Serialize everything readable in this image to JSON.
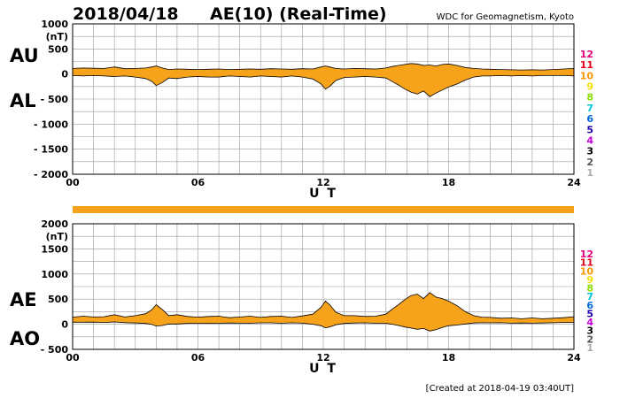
{
  "header": {
    "date": "2018/04/18",
    "title": "AE(10) (Real-Time)",
    "org": "WDC for Geomagnetism, Kyoto"
  },
  "footer": "[Created at 2018-04-19 03:40UT]",
  "colors": {
    "fill": "#f7a21b",
    "outline": "#000000",
    "grid": "#9a9a9a"
  },
  "stations": [
    {
      "label": "12",
      "color": "#e6007e"
    },
    {
      "label": "11",
      "color": "#e4001b"
    },
    {
      "label": "10",
      "color": "#f39800"
    },
    {
      "label": "9",
      "color": "#f5e100"
    },
    {
      "label": "8",
      "color": "#8fe000"
    },
    {
      "label": "7",
      "color": "#00c4d9"
    },
    {
      "label": "6",
      "color": "#0068d9"
    },
    {
      "label": "5",
      "color": "#1d00a8"
    },
    {
      "label": "4",
      "color": "#c400d9"
    },
    {
      "label": "3",
      "color": "#000000"
    },
    {
      "label": "2",
      "color": "#555555"
    },
    {
      "label": "1",
      "color": "#aaaaaa"
    }
  ],
  "chart_data": [
    {
      "type": "area",
      "panel": "AU/AL",
      "side_labels": [
        "AU",
        "AL"
      ],
      "xlabel": "U T",
      "ylabel": "(nT)",
      "xlim": [
        0,
        24
      ],
      "ylim": [
        -2000,
        1000
      ],
      "xticks": [
        0,
        6,
        12,
        18,
        24
      ],
      "xtick_labels": [
        "00",
        "06",
        "12",
        "18",
        "24"
      ],
      "yticks": [
        1000,
        500,
        0,
        -500,
        -1000,
        -1500,
        -2000
      ],
      "ytick_labels": [
        "1000",
        "500",
        "0",
        "- 500",
        "- 1000",
        "- 1500",
        "- 2000"
      ],
      "grid": true,
      "x": [
        0,
        0.5,
        1,
        1.5,
        2,
        2.5,
        3,
        3.5,
        3.8,
        4,
        4.3,
        4.6,
        5,
        5.5,
        6,
        6.5,
        7,
        7.5,
        8,
        8.5,
        9,
        9.5,
        10,
        10.5,
        11,
        11.5,
        11.9,
        12.1,
        12.3,
        12.6,
        13,
        13.5,
        14,
        14.5,
        15,
        15.3,
        15.6,
        15.9,
        16.2,
        16.5,
        16.8,
        17.1,
        17.4,
        17.7,
        18,
        18.4,
        18.8,
        19.2,
        19.6,
        20,
        20.5,
        21,
        21.5,
        22,
        22.5,
        23,
        23.5,
        24
      ],
      "series": [
        {
          "name": "AU",
          "values": [
            110,
            120,
            115,
            110,
            140,
            105,
            110,
            120,
            140,
            160,
            120,
            90,
            100,
            95,
            90,
            95,
            100,
            90,
            95,
            100,
            95,
            105,
            100,
            95,
            105,
            100,
            140,
            160,
            140,
            110,
            100,
            110,
            105,
            100,
            120,
            150,
            170,
            190,
            210,
            200,
            170,
            180,
            160,
            190,
            200,
            170,
            130,
            110,
            100,
            95,
            90,
            85,
            80,
            85,
            80,
            90,
            100,
            110
          ]
        },
        {
          "name": "AL",
          "values": [
            -30,
            -40,
            -30,
            -40,
            -50,
            -40,
            -60,
            -90,
            -150,
            -230,
            -170,
            -80,
            -90,
            -60,
            -50,
            -60,
            -60,
            -40,
            -50,
            -60,
            -40,
            -50,
            -60,
            -40,
            -60,
            -100,
            -200,
            -300,
            -250,
            -130,
            -70,
            -60,
            -50,
            -60,
            -80,
            -150,
            -220,
            -300,
            -360,
            -400,
            -340,
            -450,
            -380,
            -320,
            -260,
            -200,
            -120,
            -60,
            -40,
            -40,
            -30,
            -40,
            -30,
            -40,
            -30,
            -30,
            -30,
            -40
          ]
        }
      ]
    },
    {
      "type": "area",
      "panel": "AE/AO",
      "side_labels": [
        "AE",
        "AO"
      ],
      "xlabel": "U T",
      "ylabel": "(nT)",
      "xlim": [
        0,
        24
      ],
      "ylim": [
        -500,
        2000
      ],
      "xticks": [
        0,
        6,
        12,
        18,
        24
      ],
      "xtick_labels": [
        "00",
        "06",
        "12",
        "18",
        "24"
      ],
      "yticks": [
        2000,
        1500,
        1000,
        500,
        0,
        -500
      ],
      "ytick_labels": [
        "2000",
        "1500",
        "1000",
        "500",
        "0",
        "- 500"
      ],
      "grid": true,
      "x": [
        0,
        0.5,
        1,
        1.5,
        2,
        2.5,
        3,
        3.5,
        3.8,
        4,
        4.3,
        4.6,
        5,
        5.5,
        6,
        6.5,
        7,
        7.5,
        8,
        8.5,
        9,
        9.5,
        10,
        10.5,
        11,
        11.5,
        11.9,
        12.1,
        12.3,
        12.6,
        13,
        13.5,
        14,
        14.5,
        15,
        15.3,
        15.6,
        15.9,
        16.2,
        16.5,
        16.8,
        17.1,
        17.4,
        17.7,
        18,
        18.4,
        18.8,
        19.2,
        19.6,
        20,
        20.5,
        21,
        21.5,
        22,
        22.5,
        23,
        23.5,
        24
      ],
      "series": [
        {
          "name": "AE",
          "values": [
            140,
            160,
            145,
            150,
            190,
            145,
            170,
            210,
            290,
            390,
            290,
            170,
            190,
            155,
            140,
            155,
            160,
            130,
            145,
            160,
            135,
            155,
            160,
            135,
            165,
            200,
            340,
            460,
            390,
            240,
            170,
            170,
            155,
            160,
            200,
            300,
            390,
            490,
            570,
            600,
            510,
            630,
            540,
            510,
            460,
            370,
            250,
            170,
            140,
            135,
            120,
            125,
            110,
            125,
            110,
            120,
            130,
            150
          ]
        },
        {
          "name": "AO",
          "values": [
            40,
            40,
            42,
            35,
            45,
            32,
            25,
            15,
            -5,
            -35,
            -25,
            5,
            5,
            18,
            20,
            18,
            20,
            25,
            22,
            20,
            28,
            28,
            20,
            28,
            22,
            0,
            -30,
            -70,
            -55,
            -10,
            15,
            25,
            28,
            20,
            20,
            0,
            -25,
            -55,
            -75,
            -100,
            -85,
            -135,
            -110,
            -65,
            -30,
            -15,
            5,
            25,
            30,
            28,
            30,
            22,
            25,
            22,
            25,
            30,
            35,
            35
          ]
        }
      ]
    }
  ]
}
